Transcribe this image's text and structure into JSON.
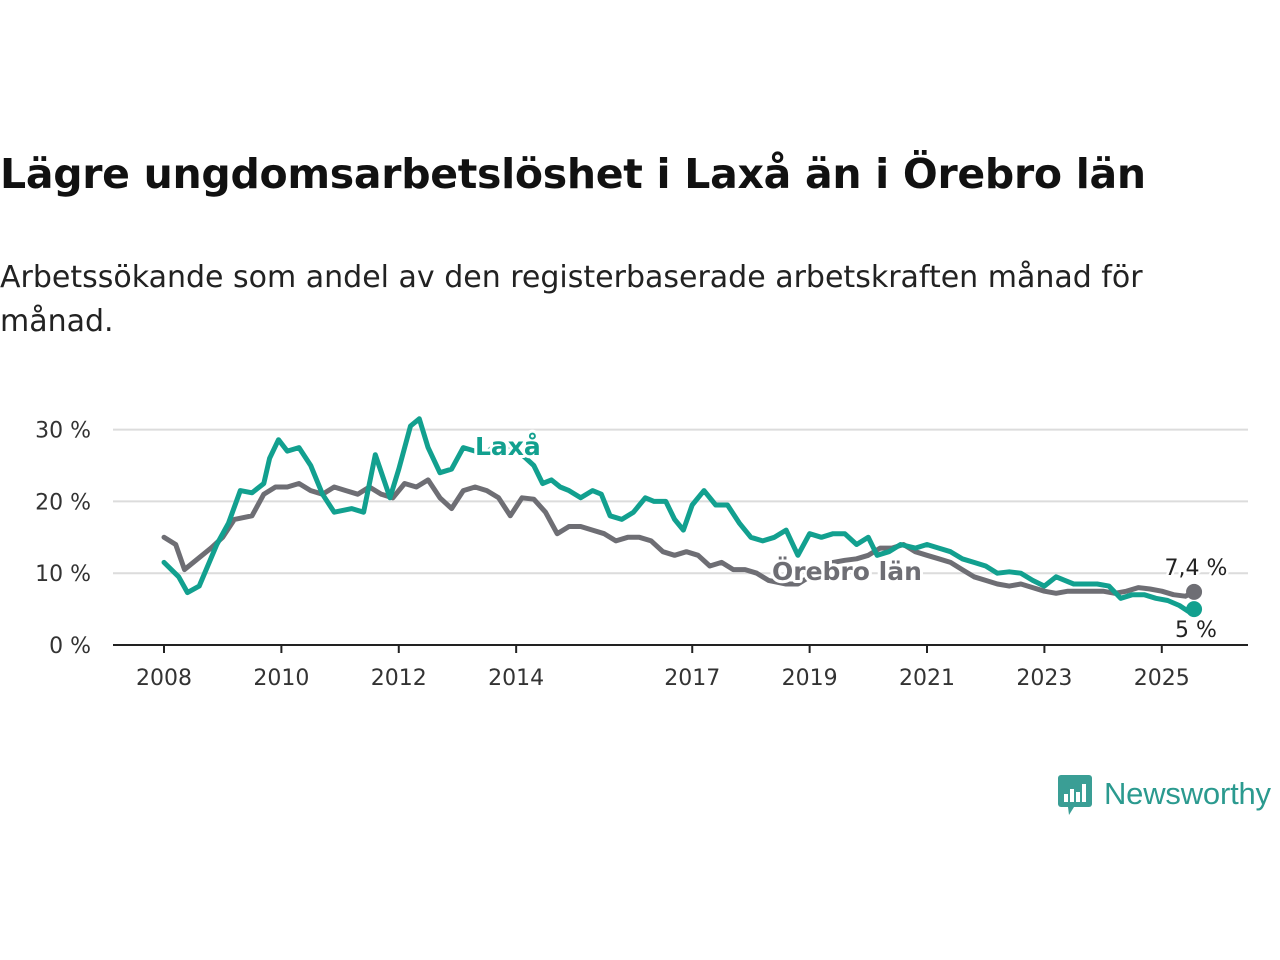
{
  "title": "Lägre ungdomsarbetslöshet i Laxå än i Örebro län",
  "subtitle": "Arbetssökande som andel av den registerbaserade arbetskraften månad för månad.",
  "brand": {
    "name": "Newsworthy",
    "icon": "newsworthy-chart-logo-icon",
    "color": "#3a9e95"
  },
  "chart_data": {
    "type": "line",
    "title": "Lägre ungdomsarbetslöshet i Laxå än i Örebro län",
    "subtitle": "Arbetssökande som andel av den registerbaserade arbetskraften månad för månad.",
    "xlabel": "",
    "ylabel": "",
    "x_ticks": [
      "2008",
      "2010",
      "2012",
      "2014",
      "2017",
      "2019",
      "2021",
      "2023",
      "2025"
    ],
    "y_ticks": [
      "0 %",
      "10 %",
      "20 %",
      "30 %"
    ],
    "ylim": [
      0,
      32
    ],
    "grid": "horizontal",
    "legend": "direct labels on lines",
    "series": [
      {
        "name": "Laxå",
        "color": "#12a08f",
        "end_label": "5 %",
        "points": [
          [
            2008.0,
            11.5
          ],
          [
            2008.25,
            9.5
          ],
          [
            2008.4,
            7.3
          ],
          [
            2008.6,
            8.2
          ],
          [
            2008.9,
            14.0
          ],
          [
            2009.1,
            17.0
          ],
          [
            2009.3,
            21.5
          ],
          [
            2009.5,
            21.2
          ],
          [
            2009.7,
            22.5
          ],
          [
            2009.8,
            26.0
          ],
          [
            2009.95,
            28.6
          ],
          [
            2010.1,
            27.0
          ],
          [
            2010.3,
            27.5
          ],
          [
            2010.5,
            25.0
          ],
          [
            2010.7,
            21.0
          ],
          [
            2010.9,
            18.5
          ],
          [
            2011.2,
            19.0
          ],
          [
            2011.4,
            18.5
          ],
          [
            2011.6,
            26.5
          ],
          [
            2011.85,
            20.5
          ],
          [
            2012.0,
            24.5
          ],
          [
            2012.2,
            30.5
          ],
          [
            2012.35,
            31.5
          ],
          [
            2012.5,
            27.5
          ],
          [
            2012.7,
            24.0
          ],
          [
            2012.9,
            24.5
          ],
          [
            2013.1,
            27.5
          ],
          [
            2013.3,
            27.0
          ],
          [
            2013.45,
            26.5
          ],
          [
            2013.6,
            27.5
          ],
          [
            2013.75,
            26.5
          ],
          [
            2013.9,
            27.5
          ],
          [
            2014.1,
            26.5
          ],
          [
            2014.3,
            25.0
          ],
          [
            2014.45,
            22.5
          ],
          [
            2014.6,
            23.0
          ],
          [
            2014.75,
            22.0
          ],
          [
            2014.9,
            21.5
          ],
          [
            2015.1,
            20.5
          ],
          [
            2015.3,
            21.5
          ],
          [
            2015.45,
            21.0
          ],
          [
            2015.6,
            18.0
          ],
          [
            2015.8,
            17.5
          ],
          [
            2016.0,
            18.5
          ],
          [
            2016.2,
            20.5
          ],
          [
            2016.35,
            20.0
          ],
          [
            2016.55,
            20.0
          ],
          [
            2016.7,
            17.5
          ],
          [
            2016.85,
            16.0
          ],
          [
            2017.0,
            19.5
          ],
          [
            2017.2,
            21.5
          ],
          [
            2017.4,
            19.5
          ],
          [
            2017.6,
            19.5
          ],
          [
            2017.8,
            17.0
          ],
          [
            2018.0,
            15.0
          ],
          [
            2018.2,
            14.5
          ],
          [
            2018.4,
            15.0
          ],
          [
            2018.6,
            16.0
          ],
          [
            2018.8,
            12.5
          ],
          [
            2019.0,
            15.5
          ],
          [
            2019.2,
            15.0
          ],
          [
            2019.4,
            15.5
          ],
          [
            2019.6,
            15.5
          ],
          [
            2019.8,
            14.0
          ],
          [
            2020.0,
            15.0
          ],
          [
            2020.15,
            12.5
          ],
          [
            2020.35,
            13.0
          ],
          [
            2020.55,
            14.0
          ],
          [
            2020.8,
            13.5
          ],
          [
            2021.0,
            14.0
          ],
          [
            2021.2,
            13.5
          ],
          [
            2021.4,
            13.0
          ],
          [
            2021.6,
            12.0
          ],
          [
            2021.8,
            11.5
          ],
          [
            2022.0,
            11.0
          ],
          [
            2022.2,
            10.0
          ],
          [
            2022.4,
            10.2
          ],
          [
            2022.6,
            10.0
          ],
          [
            2022.8,
            9.0
          ],
          [
            2023.0,
            8.2
          ],
          [
            2023.2,
            9.5
          ],
          [
            2023.35,
            9.0
          ],
          [
            2023.5,
            8.5
          ],
          [
            2023.7,
            8.5
          ],
          [
            2023.9,
            8.5
          ],
          [
            2024.1,
            8.2
          ],
          [
            2024.3,
            6.5
          ],
          [
            2024.5,
            7.0
          ],
          [
            2024.7,
            7.0
          ],
          [
            2024.9,
            6.5
          ],
          [
            2025.1,
            6.2
          ],
          [
            2025.3,
            5.5
          ],
          [
            2025.45,
            4.7
          ],
          [
            2025.55,
            5.0
          ]
        ]
      },
      {
        "name": "Örebro län",
        "color": "#6e6e74",
        "end_label": "7,4 %",
        "points": [
          [
            2008.0,
            15.0
          ],
          [
            2008.2,
            14.0
          ],
          [
            2008.35,
            10.5
          ],
          [
            2008.5,
            11.5
          ],
          [
            2008.8,
            13.5
          ],
          [
            2009.0,
            15.0
          ],
          [
            2009.2,
            17.5
          ],
          [
            2009.5,
            18.0
          ],
          [
            2009.7,
            21.0
          ],
          [
            2009.9,
            22.0
          ],
          [
            2010.1,
            22.0
          ],
          [
            2010.3,
            22.5
          ],
          [
            2010.5,
            21.5
          ],
          [
            2010.7,
            21.0
          ],
          [
            2010.9,
            22.0
          ],
          [
            2011.1,
            21.5
          ],
          [
            2011.3,
            21.0
          ],
          [
            2011.5,
            22.0
          ],
          [
            2011.7,
            21.0
          ],
          [
            2011.9,
            20.5
          ],
          [
            2012.1,
            22.5
          ],
          [
            2012.3,
            22.0
          ],
          [
            2012.5,
            23.0
          ],
          [
            2012.7,
            20.5
          ],
          [
            2012.9,
            19.0
          ],
          [
            2013.1,
            21.5
          ],
          [
            2013.3,
            22.0
          ],
          [
            2013.5,
            21.5
          ],
          [
            2013.7,
            20.5
          ],
          [
            2013.9,
            18.0
          ],
          [
            2014.1,
            20.5
          ],
          [
            2014.3,
            20.3
          ],
          [
            2014.5,
            18.5
          ],
          [
            2014.7,
            15.5
          ],
          [
            2014.9,
            16.5
          ],
          [
            2015.1,
            16.5
          ],
          [
            2015.3,
            16.0
          ],
          [
            2015.5,
            15.5
          ],
          [
            2015.7,
            14.5
          ],
          [
            2015.9,
            15.0
          ],
          [
            2016.1,
            15.0
          ],
          [
            2016.3,
            14.5
          ],
          [
            2016.5,
            13.0
          ],
          [
            2016.7,
            12.5
          ],
          [
            2016.9,
            13.0
          ],
          [
            2017.1,
            12.5
          ],
          [
            2017.3,
            11.0
          ],
          [
            2017.5,
            11.5
          ],
          [
            2017.7,
            10.5
          ],
          [
            2017.9,
            10.5
          ],
          [
            2018.1,
            10.0
          ],
          [
            2018.3,
            9.0
          ],
          [
            2018.6,
            8.5
          ],
          [
            2018.8,
            8.5
          ],
          [
            2019.0,
            9.5
          ],
          [
            2019.2,
            10.5
          ],
          [
            2019.4,
            11.5
          ],
          [
            2019.6,
            11.8
          ],
          [
            2019.8,
            12.0
          ],
          [
            2020.0,
            12.5
          ],
          [
            2020.2,
            13.5
          ],
          [
            2020.4,
            13.5
          ],
          [
            2020.6,
            14.0
          ],
          [
            2020.8,
            13.0
          ],
          [
            2021.0,
            12.5
          ],
          [
            2021.2,
            12.0
          ],
          [
            2021.4,
            11.5
          ],
          [
            2021.6,
            10.5
          ],
          [
            2021.8,
            9.5
          ],
          [
            2022.0,
            9.0
          ],
          [
            2022.2,
            8.5
          ],
          [
            2022.4,
            8.2
          ],
          [
            2022.6,
            8.5
          ],
          [
            2022.8,
            8.0
          ],
          [
            2023.0,
            7.5
          ],
          [
            2023.2,
            7.2
          ],
          [
            2023.4,
            7.5
          ],
          [
            2023.6,
            7.5
          ],
          [
            2023.8,
            7.5
          ],
          [
            2024.0,
            7.5
          ],
          [
            2024.2,
            7.2
          ],
          [
            2024.4,
            7.5
          ],
          [
            2024.6,
            8.0
          ],
          [
            2024.8,
            7.8
          ],
          [
            2025.0,
            7.5
          ],
          [
            2025.2,
            7.0
          ],
          [
            2025.4,
            6.8
          ],
          [
            2025.55,
            7.4
          ]
        ]
      }
    ]
  }
}
